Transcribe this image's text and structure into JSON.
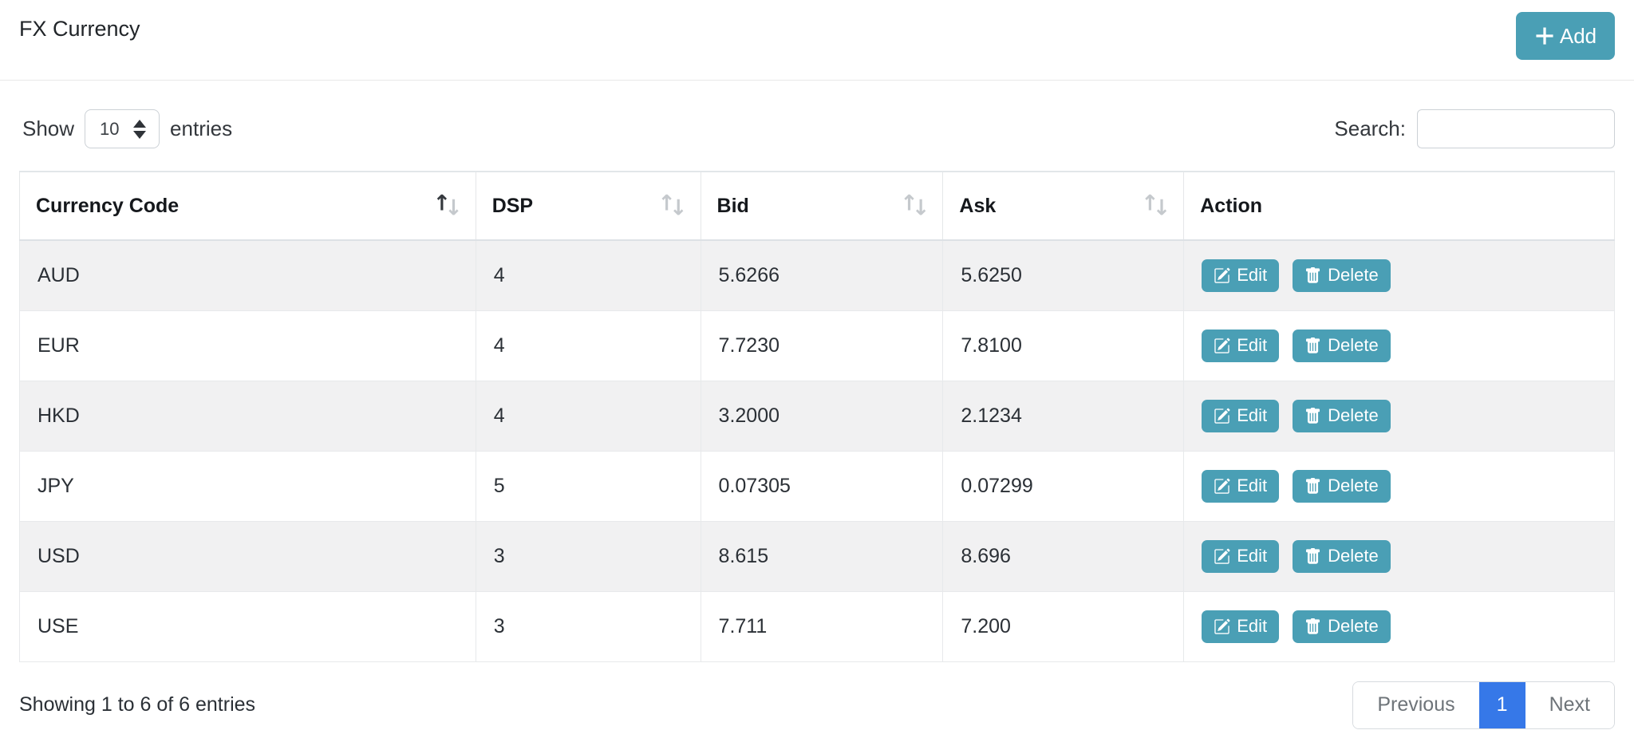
{
  "page": {
    "title": "FX Currency"
  },
  "toolbar": {
    "add_label": "Add"
  },
  "controls": {
    "show_label": "Show",
    "entries_label": "entries",
    "page_size": "10",
    "search_label": "Search:",
    "search_value": ""
  },
  "table": {
    "columns": [
      {
        "label": "Currency Code",
        "field": "currency_code",
        "sort": "asc"
      },
      {
        "label": "DSP",
        "field": "dsp",
        "sort": "none"
      },
      {
        "label": "Bid",
        "field": "bid",
        "sort": "none"
      },
      {
        "label": "Ask",
        "field": "ask",
        "sort": "none"
      },
      {
        "label": "Action",
        "field": null,
        "sort": null
      }
    ],
    "rows": [
      {
        "currency_code": "AUD",
        "dsp": "4",
        "bid": "5.6266",
        "ask": "5.6250"
      },
      {
        "currency_code": "EUR",
        "dsp": "4",
        "bid": "7.7230",
        "ask": "7.8100"
      },
      {
        "currency_code": "HKD",
        "dsp": "4",
        "bid": "3.2000",
        "ask": "2.1234"
      },
      {
        "currency_code": "JPY",
        "dsp": "5",
        "bid": "0.07305",
        "ask": "0.07299"
      },
      {
        "currency_code": "USD",
        "dsp": "3",
        "bid": "8.615",
        "ask": "8.696"
      },
      {
        "currency_code": "USE",
        "dsp": "3",
        "bid": "7.711",
        "ask": "7.200"
      }
    ],
    "row_actions": {
      "edit_label": "Edit",
      "delete_label": "Delete"
    }
  },
  "footer": {
    "info": "Showing 1 to 6 of 6 entries",
    "pagination": {
      "previous_label": "Previous",
      "pages": [
        "1"
      ],
      "active_page": "1",
      "next_label": "Next"
    }
  },
  "colors": {
    "accent_teal": "#4a9fb5",
    "active_page_blue": "#3678e8",
    "stripe_gray": "#f1f1f2"
  }
}
